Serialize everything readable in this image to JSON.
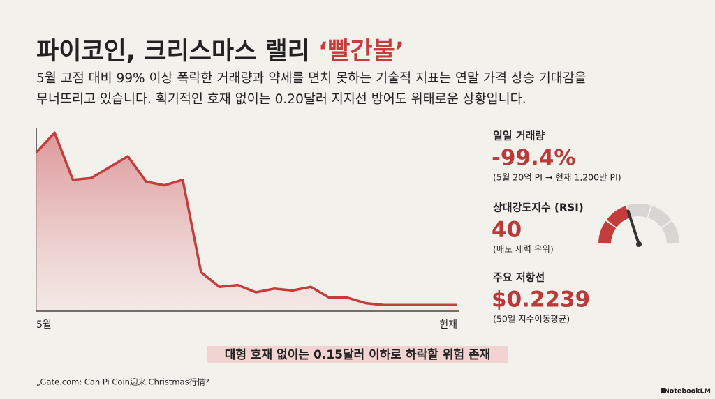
{
  "title": "파이코인, 크리스마스 랠리",
  "title_emphasis": "‘빨간불’",
  "subtitle": [
    "5월 고점 대비 99% 이상 폭락한 거래량과 약세를 면치 못하는 기술적 지표는 연말 가격 상승 기대감을",
    "무너뜨리고 있습니다. 획기적인 호재 없이는 0.20달러 지지선 방어도 위태로운 상황입니다."
  ],
  "chart_data": {
    "type": "area",
    "color": "#c43c3c",
    "categories": [
      "5월",
      null,
      null,
      null,
      null,
      null,
      null,
      null,
      null,
      null,
      null,
      null,
      null,
      null,
      null,
      null,
      null,
      null,
      null,
      null,
      null,
      null,
      null,
      "현재"
    ],
    "values": [
      87,
      98,
      72,
      73,
      79,
      85,
      71,
      69,
      72,
      21,
      13,
      14,
      10,
      12,
      11,
      13,
      7,
      7,
      4,
      3,
      3,
      3,
      3,
      3
    ],
    "ylim": [
      0,
      100
    ]
  },
  "stats": [
    {
      "label": "일일 거래량",
      "value": "-99.4%",
      "note": "(5월 20억 PI → 현재 1,200만 PI)"
    },
    {
      "label": "상대강도지수 (RSI)",
      "value": 40,
      "note": "(매도 세력 우위)"
    },
    {
      "label": "주요 저항선",
      "value": "$0.2239",
      "note": "(50일 지수이동평균)"
    }
  ],
  "gauge_range": [
    0,
    100
  ],
  "callout": "대형 호재 없이는 0.15달러 이하로 하락할 위험 존재",
  "source": "„Gate.com: Can Pi Coin迎来 Christmas行情?",
  "brand": "NotebookLM"
}
